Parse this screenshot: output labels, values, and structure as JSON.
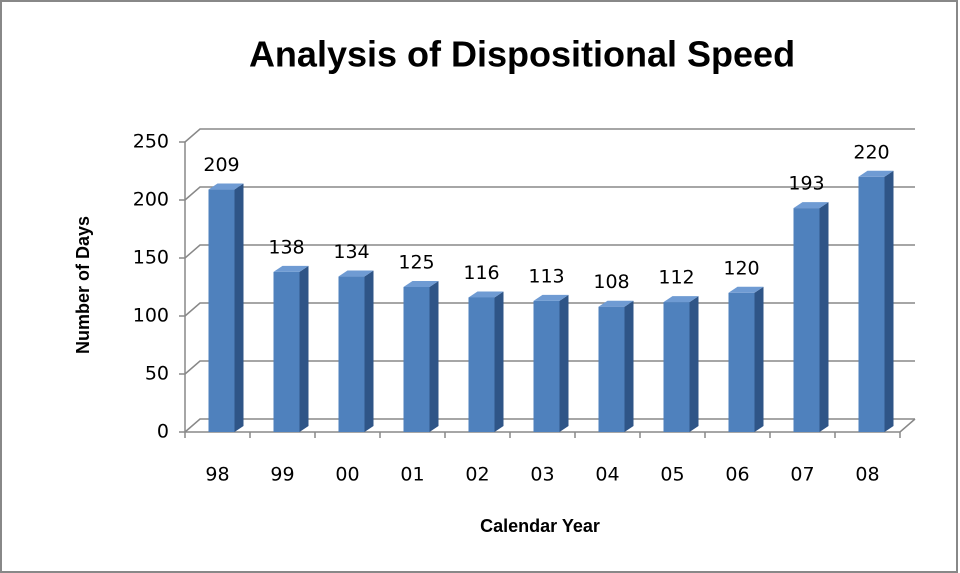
{
  "chart_data": {
    "type": "bar",
    "title": "Analysis of Dispositional Speed",
    "x_label": "Calendar Year",
    "y_label": "Number of Days",
    "categories": [
      "98",
      "99",
      "00",
      "01",
      "02",
      "03",
      "04",
      "05",
      "06",
      "07",
      "08"
    ],
    "values": [
      209,
      138,
      134,
      125,
      116,
      113,
      108,
      112,
      120,
      193,
      220
    ],
    "color": "#4f81bd",
    "ylim": [
      0,
      250
    ],
    "yticks": [
      0,
      50,
      100,
      150,
      200,
      250
    ],
    "grid": true
  }
}
